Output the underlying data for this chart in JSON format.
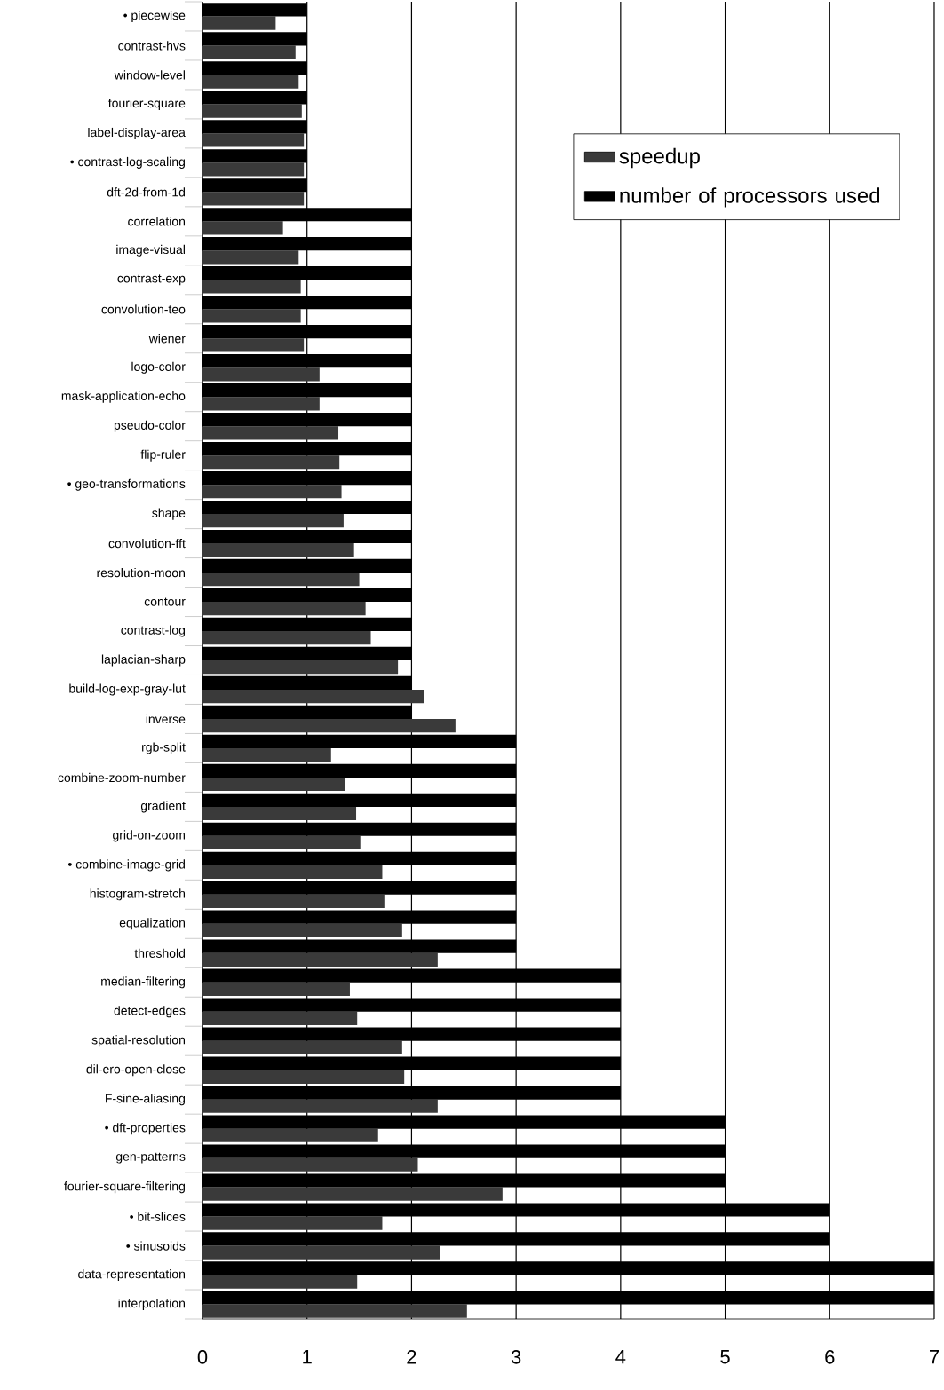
{
  "chart_data": {
    "type": "bar",
    "orientation": "horizontal",
    "categories": [
      "• piecewise",
      "contrast-hvs",
      "window-level",
      "fourier-square",
      "label-display-area",
      "• contrast-log-scaling",
      "dft-2d-from-1d",
      "correlation",
      "image-visual",
      "contrast-exp",
      "convolution-teo",
      "wiener",
      "logo-color",
      "mask-application-echo",
      "pseudo-color",
      "flip-ruler",
      "• geo-transformations",
      "shape",
      "convolution-fft",
      "resolution-moon",
      "contour",
      "contrast-log",
      "laplacian-sharp",
      "build-log-exp-gray-lut",
      "inverse",
      "rgb-split",
      "combine-zoom-number",
      "gradient",
      "grid-on-zoom",
      "• combine-image-grid",
      "histogram-stretch",
      "equalization",
      "threshold",
      "median-filtering",
      "detect-edges",
      "spatial-resolution",
      "dil-ero-open-close",
      "F-sine-aliasing",
      "• dft-properties",
      "gen-patterns",
      "fourier-square-filtering",
      "• bit-slices",
      "• sinusoids",
      "data-representation",
      "interpolation"
    ],
    "series": [
      {
        "name": "speedup",
        "color": "#3a3a3a",
        "values": [
          0.7,
          0.89,
          0.92,
          0.95,
          0.97,
          0.97,
          0.97,
          0.77,
          0.92,
          0.94,
          0.94,
          0.97,
          1.12,
          1.12,
          1.3,
          1.31,
          1.33,
          1.35,
          1.45,
          1.5,
          1.56,
          1.61,
          1.87,
          2.12,
          2.42,
          1.23,
          1.36,
          1.47,
          1.51,
          1.72,
          1.74,
          1.91,
          2.25,
          1.41,
          1.48,
          1.91,
          1.93,
          2.25,
          1.68,
          2.06,
          2.87,
          1.72,
          2.27,
          1.48,
          2.53
        ]
      },
      {
        "name": "number of processors used",
        "color": "#000000",
        "values": [
          1,
          1,
          1,
          1,
          1,
          1,
          1,
          2,
          2,
          2,
          2,
          2,
          2,
          2,
          2,
          2,
          2,
          2,
          2,
          2,
          2,
          2,
          2,
          2,
          2,
          3,
          3,
          3,
          3,
          3,
          3,
          3,
          3,
          4,
          4,
          4,
          4,
          4,
          5,
          5,
          5,
          6,
          6,
          7,
          7
        ]
      }
    ],
    "xlim": [
      0,
      7
    ],
    "xticks": [
      0,
      1,
      2,
      3,
      4,
      5,
      6,
      7
    ],
    "grid": "x",
    "legend": "top right"
  }
}
